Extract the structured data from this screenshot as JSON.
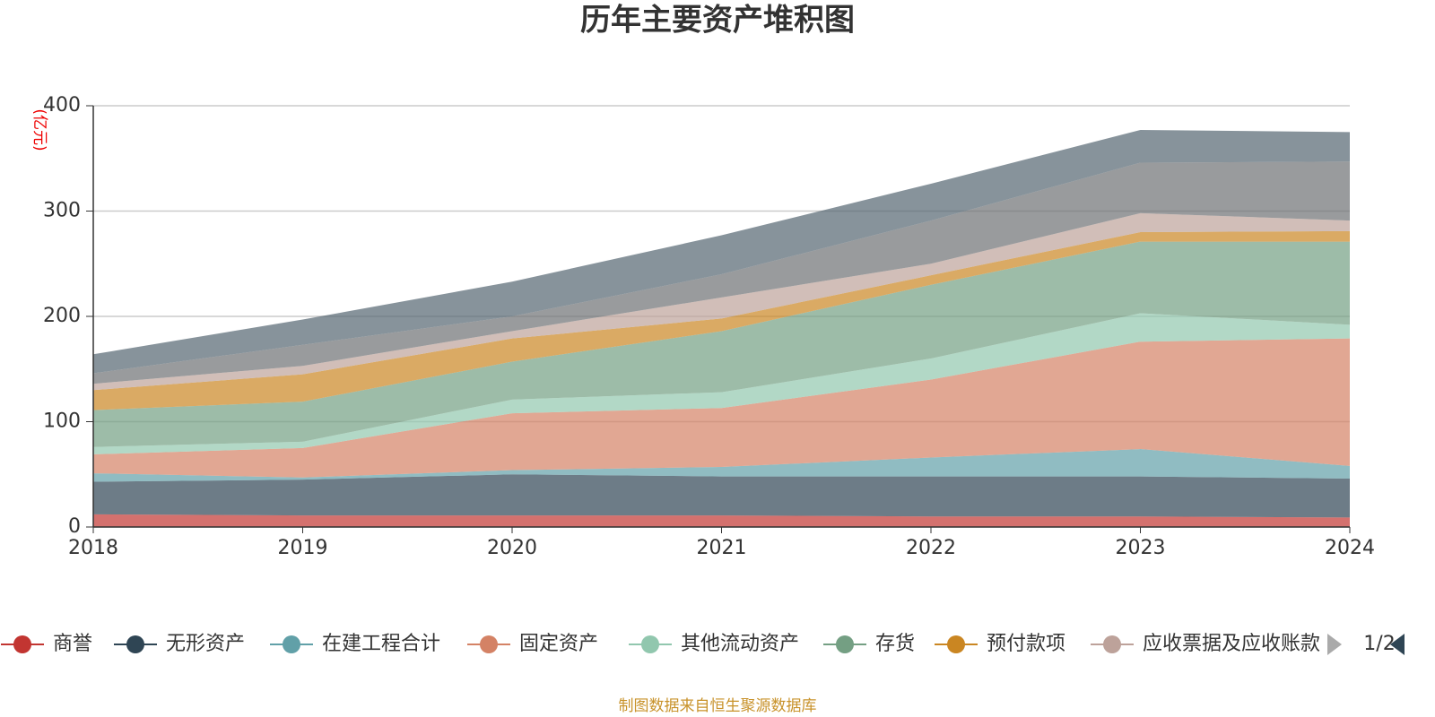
{
  "chart_data": {
    "type": "stacked_area",
    "title": "历年主要资产堆积图",
    "y_unit": "(亿元)",
    "categories": [
      "2018",
      "2019",
      "2020",
      "2021",
      "2022",
      "2023",
      "2024"
    ],
    "ylim": [
      0,
      400
    ],
    "yticks": [
      0,
      100,
      200,
      300,
      400
    ],
    "grid": true,
    "series": [
      {
        "name": "商誉",
        "color": "#c23531",
        "values": [
          12,
          11,
          11,
          11,
          10,
          10,
          9
        ]
      },
      {
        "name": "无形资产",
        "color": "#2f4554",
        "values": [
          31,
          34,
          39,
          37,
          38,
          38,
          37
        ]
      },
      {
        "name": "在建工程合计",
        "color": "#61a0a8",
        "values": [
          8,
          2,
          4,
          9,
          18,
          26,
          12
        ]
      },
      {
        "name": "固定资产",
        "color": "#d48265",
        "values": [
          18,
          28,
          54,
          56,
          74,
          102,
          121
        ]
      },
      {
        "name": "其他流动资产",
        "color": "#91c7ae",
        "values": [
          7,
          6,
          13,
          15,
          20,
          27,
          13
        ]
      },
      {
        "name": "存货",
        "color": "#749f83",
        "values": [
          35,
          38,
          36,
          58,
          70,
          68,
          79
        ]
      },
      {
        "name": "预付款项",
        "color": "#ca8622",
        "values": [
          19,
          26,
          22,
          12,
          9,
          9,
          10
        ]
      },
      {
        "name": "应收票据及应收账款",
        "color": "#bda29a",
        "values": [
          6,
          8,
          7,
          20,
          11,
          18,
          10
        ]
      },
      {
        "color": "#6e7074",
        "values": [
          10,
          20,
          14,
          22,
          41,
          48,
          56
        ]
      },
      {
        "color": "#546570",
        "values": [
          18,
          24,
          33,
          37,
          35,
          31,
          28
        ]
      }
    ],
    "legend_page": "1/2",
    "source": "制图数据来自恒生聚源数据库"
  }
}
